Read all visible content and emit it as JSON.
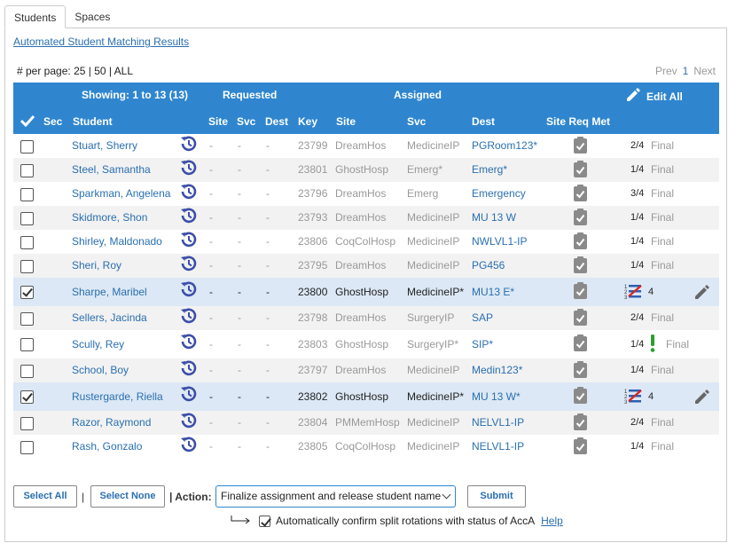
{
  "tabs": [
    "Students",
    "Spaces"
  ],
  "matching_link": "Automated Student Matching Results",
  "per_page": {
    "label": "# per page:",
    "options": "25 | 50 | ALL"
  },
  "pager": {
    "prev": "Prev",
    "current": "1",
    "next": "Next"
  },
  "header": {
    "showing": "Showing: 1 to 13 (13)",
    "requested": "Requested",
    "assigned": "Assigned",
    "edit_all": "Edit All",
    "columns": {
      "sec": "Sec",
      "student": "Student",
      "site": "Site",
      "svc": "Svc",
      "dest": "Dest",
      "key": "Key",
      "a_site": "Site",
      "a_svc": "Svc",
      "a_dest": "Dest",
      "req_met": "Site Req Met"
    }
  },
  "rows": [
    {
      "name": "Stuart, Sherry",
      "key": "23799",
      "site": "DreamHos",
      "svc": "MedicineIP",
      "dest": "PGRoom123*",
      "status": "2/4",
      "final": "Final",
      "checked": false
    },
    {
      "name": "Steel, Samantha",
      "key": "23801",
      "site": "GhostHosp",
      "svc": "Emerg*",
      "dest": "Emerg*",
      "status": "1/4",
      "final": "Final",
      "checked": false
    },
    {
      "name": "Sparkman, Angelena",
      "key": "23796",
      "site": "DreamHos",
      "svc": "Emerg",
      "dest": "Emergency",
      "status": "3/4",
      "final": "Final",
      "checked": false
    },
    {
      "name": "Skidmore, Shon",
      "key": "23793",
      "site": "DreamHos",
      "svc": "MedicineIP",
      "dest": "MU 13 W",
      "status": "1/4",
      "final": "Final",
      "checked": false
    },
    {
      "name": "Shirley, Maldonado",
      "key": "23806",
      "site": "CoqColHosp",
      "svc": "MedicineIP",
      "dest": "NWLVL1-IP",
      "status": "1/4",
      "final": "Final",
      "checked": false
    },
    {
      "name": "Sheri, Roy",
      "key": "23795",
      "site": "DreamHos",
      "svc": "MedicineIP",
      "dest": "PG456",
      "status": "1/4",
      "final": "Final",
      "checked": false
    },
    {
      "name": "Sharpe, Maribel",
      "key": "23800",
      "site": "GhostHosp",
      "svc": "MedicineIP*",
      "dest": "MU13 E*",
      "status": "4",
      "final": "",
      "checked": true
    },
    {
      "name": "Sellers, Jacinda",
      "key": "23798",
      "site": "DreamHos",
      "svc": "SurgeryIP",
      "dest": "SAP",
      "status": "2/4",
      "final": "Final",
      "checked": false
    },
    {
      "name": "Scully, Rey",
      "key": "23803",
      "site": "GhostHosp",
      "svc": "SurgeryIP*",
      "dest": "SIP*",
      "status": "1/4",
      "final": "Final",
      "checked": false
    },
    {
      "name": "School, Boy",
      "key": "23797",
      "site": "DreamHos",
      "svc": "MedicineIP",
      "dest": "Medin123*",
      "status": "1/4",
      "final": "Final",
      "checked": false
    },
    {
      "name": "Rustergarde, Riella",
      "key": "23802",
      "site": "GhostHosp",
      "svc": "MedicineIP*",
      "dest": "MU 13 W*",
      "status": "4",
      "final": "",
      "checked": true
    },
    {
      "name": "Razor, Raymond",
      "key": "23804",
      "site": "PMMemHosp",
      "svc": "MedicineIP",
      "dest": "NELVL1-IP",
      "status": "2/4",
      "final": "Final",
      "checked": false
    },
    {
      "name": "Rash, Gonzalo",
      "key": "23805",
      "site": "CoqColHosp",
      "svc": "MedicineIP",
      "dest": "NELVL1-IP",
      "status": "1/4",
      "final": "Final",
      "checked": false
    }
  ],
  "dash": "-",
  "footer": {
    "select_all": "Select All",
    "select_none": "Select None",
    "pipe": "|",
    "action_label": "| Action:",
    "action_value": "Finalize assignment and release student name",
    "submit": "Submit",
    "auto_confirm": "Automatically confirm split rotations with status of AccA",
    "help": "Help"
  },
  "colors": {
    "header": "#2f86cf",
    "link": "#2a6fb0",
    "selected_row": "#dce8f5",
    "history_icon": "#3b4ea8"
  }
}
